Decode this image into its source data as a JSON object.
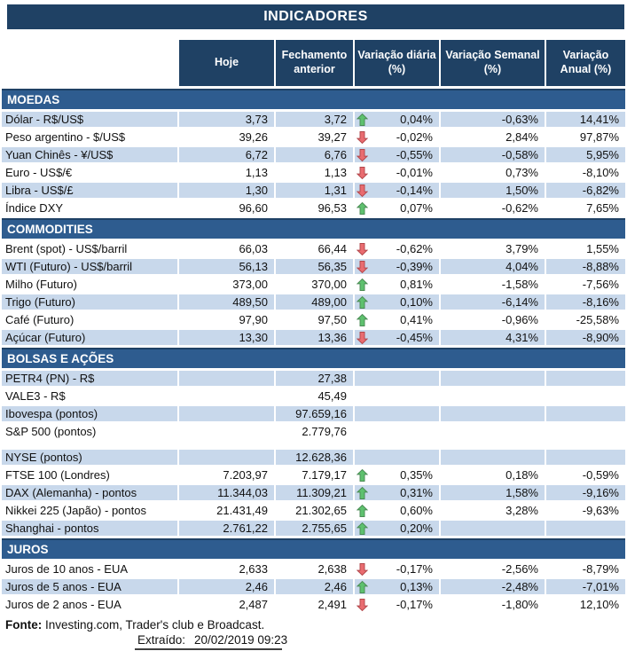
{
  "title": "INDICADORES",
  "colors": {
    "navy": "#1f4164",
    "band": "#2e5c8f",
    "row_shaded": "#c8d8eb",
    "arrow_up_fill": "#5ec16e",
    "arrow_up_stroke": "#4a8a54",
    "arrow_down_fill": "#e96c70",
    "arrow_down_stroke": "#b2474b"
  },
  "table": {
    "columns": [
      "Hoje",
      "Fechamento anterior",
      "Variação diária (%)",
      "Variação Semanal (%)",
      "Variação Anual (%)"
    ],
    "sections": [
      {
        "title": "MOEDAS",
        "rows": [
          {
            "label": "Dólar - R$/US$",
            "hoje": "3,73",
            "fech": "3,72",
            "arrow": "up",
            "vd": "0,04%",
            "vs": "-0,63%",
            "va": "14,41%",
            "shaded": true
          },
          {
            "label": "Peso argentino - $/US$",
            "hoje": "39,26",
            "fech": "39,27",
            "arrow": "down",
            "vd": "-0,02%",
            "vs": "2,84%",
            "va": "97,87%",
            "shaded": false
          },
          {
            "label": "Yuan Chinês - ¥/US$",
            "hoje": "6,72",
            "fech": "6,76",
            "arrow": "down",
            "vd": "-0,55%",
            "vs": "-0,58%",
            "va": "5,95%",
            "shaded": true
          },
          {
            "label": "Euro - US$/€",
            "hoje": "1,13",
            "fech": "1,13",
            "arrow": "down",
            "vd": "-0,01%",
            "vs": "0,73%",
            "va": "-8,10%",
            "shaded": false
          },
          {
            "label": "Libra - US$/£",
            "hoje": "1,30",
            "fech": "1,31",
            "arrow": "down",
            "vd": "-0,14%",
            "vs": "1,50%",
            "va": "-6,82%",
            "shaded": true
          },
          {
            "label": "Índice DXY",
            "hoje": "96,60",
            "fech": "96,53",
            "arrow": "up",
            "vd": "0,07%",
            "vs": "-0,62%",
            "va": "7,65%",
            "shaded": false
          }
        ]
      },
      {
        "title": "COMMODITIES",
        "rows": [
          {
            "label": "Brent (spot) - US$/barril",
            "hoje": "66,03",
            "fech": "66,44",
            "arrow": "down",
            "vd": "-0,62%",
            "vs": "3,79%",
            "va": "1,55%",
            "shaded": false
          },
          {
            "label": "WTI (Futuro) - US$/barril",
            "hoje": "56,13",
            "fech": "56,35",
            "arrow": "down",
            "vd": "-0,39%",
            "vs": "4,04%",
            "va": "-8,88%",
            "shaded": true
          },
          {
            "label": "Milho (Futuro)",
            "hoje": "373,00",
            "fech": "370,00",
            "arrow": "up",
            "vd": "0,81%",
            "vs": "-1,58%",
            "va": "-7,56%",
            "shaded": false
          },
          {
            "label": "Trigo (Futuro)",
            "hoje": "489,50",
            "fech": "489,00",
            "arrow": "up",
            "vd": "0,10%",
            "vs": "-6,14%",
            "va": "-8,16%",
            "shaded": true
          },
          {
            "label": "Café (Futuro)",
            "hoje": "97,90",
            "fech": "97,50",
            "arrow": "up",
            "vd": "0,41%",
            "vs": "-0,96%",
            "va": "-25,58%",
            "shaded": false
          },
          {
            "label": "Açúcar (Futuro)",
            "hoje": "13,30",
            "fech": "13,36",
            "arrow": "down",
            "vd": "-0,45%",
            "vs": "4,31%",
            "va": "-8,90%",
            "shaded": true
          }
        ]
      },
      {
        "title": "BOLSAS E AÇÕES",
        "rows": [
          {
            "label": "PETR4 (PN) - R$",
            "hoje": "",
            "fech": "27,38",
            "arrow": null,
            "vd": "",
            "vs": "",
            "va": "",
            "shaded": true
          },
          {
            "label": "VALE3 - R$",
            "hoje": "",
            "fech": "45,49",
            "arrow": null,
            "vd": "",
            "vs": "",
            "va": "",
            "shaded": false
          },
          {
            "label": "Ibovespa (pontos)",
            "hoje": "",
            "fech": "97.659,16",
            "arrow": null,
            "vd": "",
            "vs": "",
            "va": "",
            "shaded": true
          },
          {
            "label": "S&P 500 (pontos)",
            "hoje": "",
            "fech": "2.779,76",
            "arrow": null,
            "vd": "",
            "vs": "",
            "va": "",
            "shaded": false
          },
          {
            "spacer": true
          },
          {
            "label": "NYSE (pontos)",
            "hoje": "",
            "fech": "12.628,36",
            "arrow": null,
            "vd": "",
            "vs": "",
            "va": "",
            "shaded": true
          },
          {
            "label": "FTSE 100 (Londres)",
            "hoje": "7.203,97",
            "fech": "7.179,17",
            "arrow": "up",
            "vd": "0,35%",
            "vs": "0,18%",
            "va": "-0,59%",
            "shaded": false
          },
          {
            "label": "DAX (Alemanha) - pontos",
            "hoje": "11.344,03",
            "fech": "11.309,21",
            "arrow": "up",
            "vd": "0,31%",
            "vs": "1,58%",
            "va": "-9,16%",
            "shaded": true
          },
          {
            "label": "Nikkei 225 (Japão) - pontos",
            "hoje": "21.431,49",
            "fech": "21.302,65",
            "arrow": "up",
            "vd": "0,60%",
            "vs": "3,28%",
            "va": "-9,63%",
            "shaded": false
          },
          {
            "label": "Shanghai - pontos",
            "hoje": "2.761,22",
            "fech": "2.755,65",
            "arrow": "up",
            "vd": "0,20%",
            "vs": "",
            "va": "",
            "shaded": true
          }
        ]
      },
      {
        "title": "JUROS",
        "rows": [
          {
            "label": "Juros de 10 anos - EUA",
            "hoje": "2,633",
            "fech": "2,638",
            "arrow": "down",
            "vd": "-0,17%",
            "vs": "-2,56%",
            "va": "-8,79%",
            "shaded": false
          },
          {
            "label": "Juros de 5 anos - EUA",
            "hoje": "2,46",
            "fech": "2,46",
            "arrow": "up",
            "vd": "0,13%",
            "vs": "-2,48%",
            "va": "-7,01%",
            "shaded": true
          },
          {
            "label": "Juros de 2 anos - EUA",
            "hoje": "2,487",
            "fech": "2,491",
            "arrow": "down",
            "vd": "-0,17%",
            "vs": "-1,80%",
            "va": "12,10%",
            "shaded": false
          }
        ]
      }
    ]
  },
  "footer": {
    "fonte_label": "Fonte:",
    "fonte_text": " Investing.com, Trader's club e Broadcast.",
    "extraido_label": "Extraído:",
    "extraido_value": "20/02/2019 09:23"
  }
}
